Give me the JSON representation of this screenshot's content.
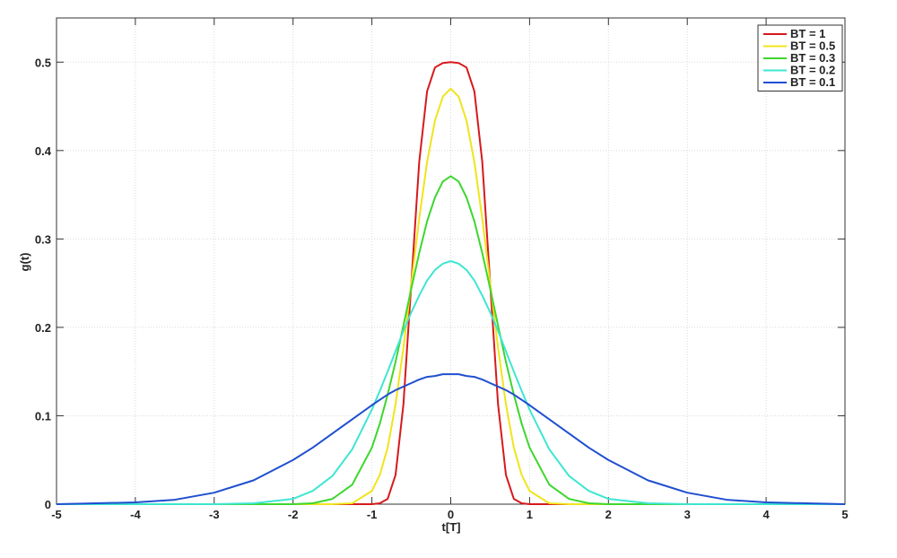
{
  "chart_data": {
    "type": "line",
    "x_label": "t[T]",
    "y_label": "g(t)",
    "x": [
      -5,
      -4.5,
      -4,
      -3.5,
      -3,
      -2.5,
      -2,
      -1.75,
      -1.5,
      -1.25,
      -1,
      -0.9,
      -0.8,
      -0.7,
      -0.6,
      -0.5,
      -0.4,
      -0.3,
      -0.2,
      -0.1,
      0,
      0.1,
      0.2,
      0.3,
      0.4,
      0.5,
      0.6,
      0.7,
      0.8,
      0.9,
      1,
      1.25,
      1.5,
      1.75,
      2,
      2.5,
      3,
      3.5,
      4,
      4.5,
      5
    ],
    "series": [
      {
        "name": "BT = 1",
        "color": "#d7191c",
        "values": [
          0,
          0,
          0,
          0,
          0,
          0,
          0,
          0,
          0,
          0,
          0,
          0.001,
          0.006,
          0.033,
          0.113,
          0.25,
          0.387,
          0.467,
          0.494,
          0.499,
          0.5,
          0.499,
          0.494,
          0.467,
          0.387,
          0.25,
          0.113,
          0.033,
          0.006,
          0.001,
          0,
          0,
          0,
          0,
          0,
          0,
          0,
          0,
          0,
          0,
          0
        ]
      },
      {
        "name": "BT = 0.5",
        "color": "#f0e41c",
        "values": [
          0,
          0,
          0,
          0,
          0,
          0,
          0,
          0,
          0,
          0.001,
          0.015,
          0.033,
          0.064,
          0.113,
          0.177,
          0.25,
          0.323,
          0.387,
          0.434,
          0.461,
          0.47,
          0.461,
          0.434,
          0.387,
          0.323,
          0.25,
          0.177,
          0.113,
          0.064,
          0.033,
          0.015,
          0.001,
          0,
          0,
          0,
          0,
          0,
          0,
          0,
          0,
          0
        ]
      },
      {
        "name": "BT = 0.3",
        "color": "#3ed62e",
        "values": [
          0,
          0,
          0,
          0,
          0,
          0,
          0,
          0.001,
          0.006,
          0.022,
          0.064,
          0.091,
          0.124,
          0.161,
          0.202,
          0.244,
          0.284,
          0.32,
          0.347,
          0.365,
          0.371,
          0.365,
          0.347,
          0.32,
          0.284,
          0.244,
          0.202,
          0.161,
          0.124,
          0.091,
          0.064,
          0.022,
          0.006,
          0.001,
          0,
          0,
          0,
          0,
          0,
          0,
          0
        ]
      },
      {
        "name": "BT = 0.2",
        "color": "#3ee6d2",
        "values": [
          0,
          0,
          0,
          0,
          0,
          0.001,
          0.006,
          0.015,
          0.032,
          0.062,
          0.107,
          0.128,
          0.15,
          0.173,
          0.196,
          0.217,
          0.236,
          0.253,
          0.265,
          0.272,
          0.275,
          0.272,
          0.265,
          0.253,
          0.236,
          0.217,
          0.196,
          0.173,
          0.15,
          0.128,
          0.107,
          0.062,
          0.032,
          0.015,
          0.006,
          0.001,
          0,
          0,
          0,
          0,
          0
        ]
      },
      {
        "name": "BT = 0.1",
        "color": "#1f4fcf",
        "values": [
          0,
          0.001,
          0.002,
          0.005,
          0.013,
          0.027,
          0.05,
          0.064,
          0.08,
          0.096,
          0.112,
          0.118,
          0.124,
          0.129,
          0.133,
          0.137,
          0.141,
          0.144,
          0.145,
          0.147,
          0.147,
          0.147,
          0.145,
          0.144,
          0.141,
          0.137,
          0.133,
          0.129,
          0.124,
          0.118,
          0.112,
          0.096,
          0.08,
          0.064,
          0.05,
          0.027,
          0.013,
          0.005,
          0.002,
          0.001,
          0
        ]
      }
    ],
    "xlim": [
      -5,
      5
    ],
    "ylim": [
      0,
      0.55
    ],
    "xticks": [
      -5,
      -4,
      -3,
      -2,
      -1,
      0,
      1,
      2,
      3,
      4,
      5
    ],
    "yticks": [
      0,
      0.1,
      0.2,
      0.3,
      0.4,
      0.5
    ],
    "grid": true,
    "legend": "upper right"
  }
}
